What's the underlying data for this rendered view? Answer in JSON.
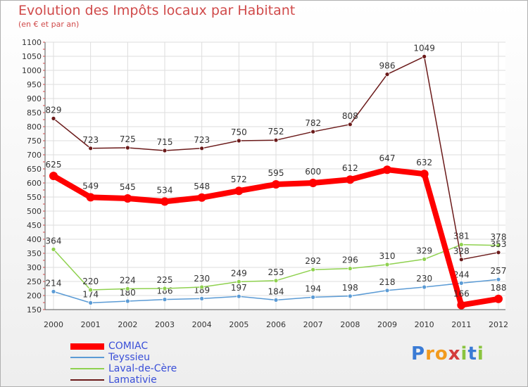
{
  "title": "Evolution des Impôts locaux par Habitant",
  "subtitle": "(en € et par an)",
  "logo": {
    "letters": [
      "P",
      "r",
      "o",
      "x",
      "i",
      "t",
      "i"
    ],
    "colors": [
      "#3a7bd5",
      "#f29a1d",
      "#f29a1d",
      "#d43b3b",
      "#8ac43f",
      "#3a7bd5",
      "#8ac43f"
    ]
  },
  "chart_data": {
    "type": "line",
    "x": [
      "2000",
      "2001",
      "2002",
      "2003",
      "2004",
      "2005",
      "2006",
      "2007",
      "2008",
      "2009",
      "2010",
      "2011",
      "2012"
    ],
    "ylim": [
      150,
      1100
    ],
    "yticks": [
      150,
      200,
      250,
      300,
      350,
      400,
      450,
      500,
      550,
      600,
      650,
      700,
      750,
      800,
      850,
      900,
      950,
      1000,
      1050,
      1100
    ],
    "grid": true,
    "legend_position": "bottom-left",
    "series": [
      {
        "name": "COMIAC",
        "color": "#ff0000",
        "values": [
          625,
          549,
          545,
          534,
          548,
          572,
          595,
          600,
          612,
          647,
          632,
          166,
          188
        ]
      },
      {
        "name": "Teyssieu",
        "color": "#5b9bd5",
        "values": [
          214,
          174,
          180,
          186,
          189,
          197,
          184,
          194,
          198,
          218,
          230,
          244,
          257
        ]
      },
      {
        "name": "Laval-de-Cère",
        "color": "#8fd14f",
        "values": [
          364,
          220,
          224,
          225,
          230,
          249,
          253,
          292,
          296,
          310,
          329,
          381,
          378
        ]
      },
      {
        "name": "Lamativie",
        "color": "#6b1a1a",
        "values": [
          829,
          723,
          725,
          715,
          723,
          750,
          752,
          782,
          808,
          986,
          1049,
          328,
          353
        ]
      }
    ]
  }
}
